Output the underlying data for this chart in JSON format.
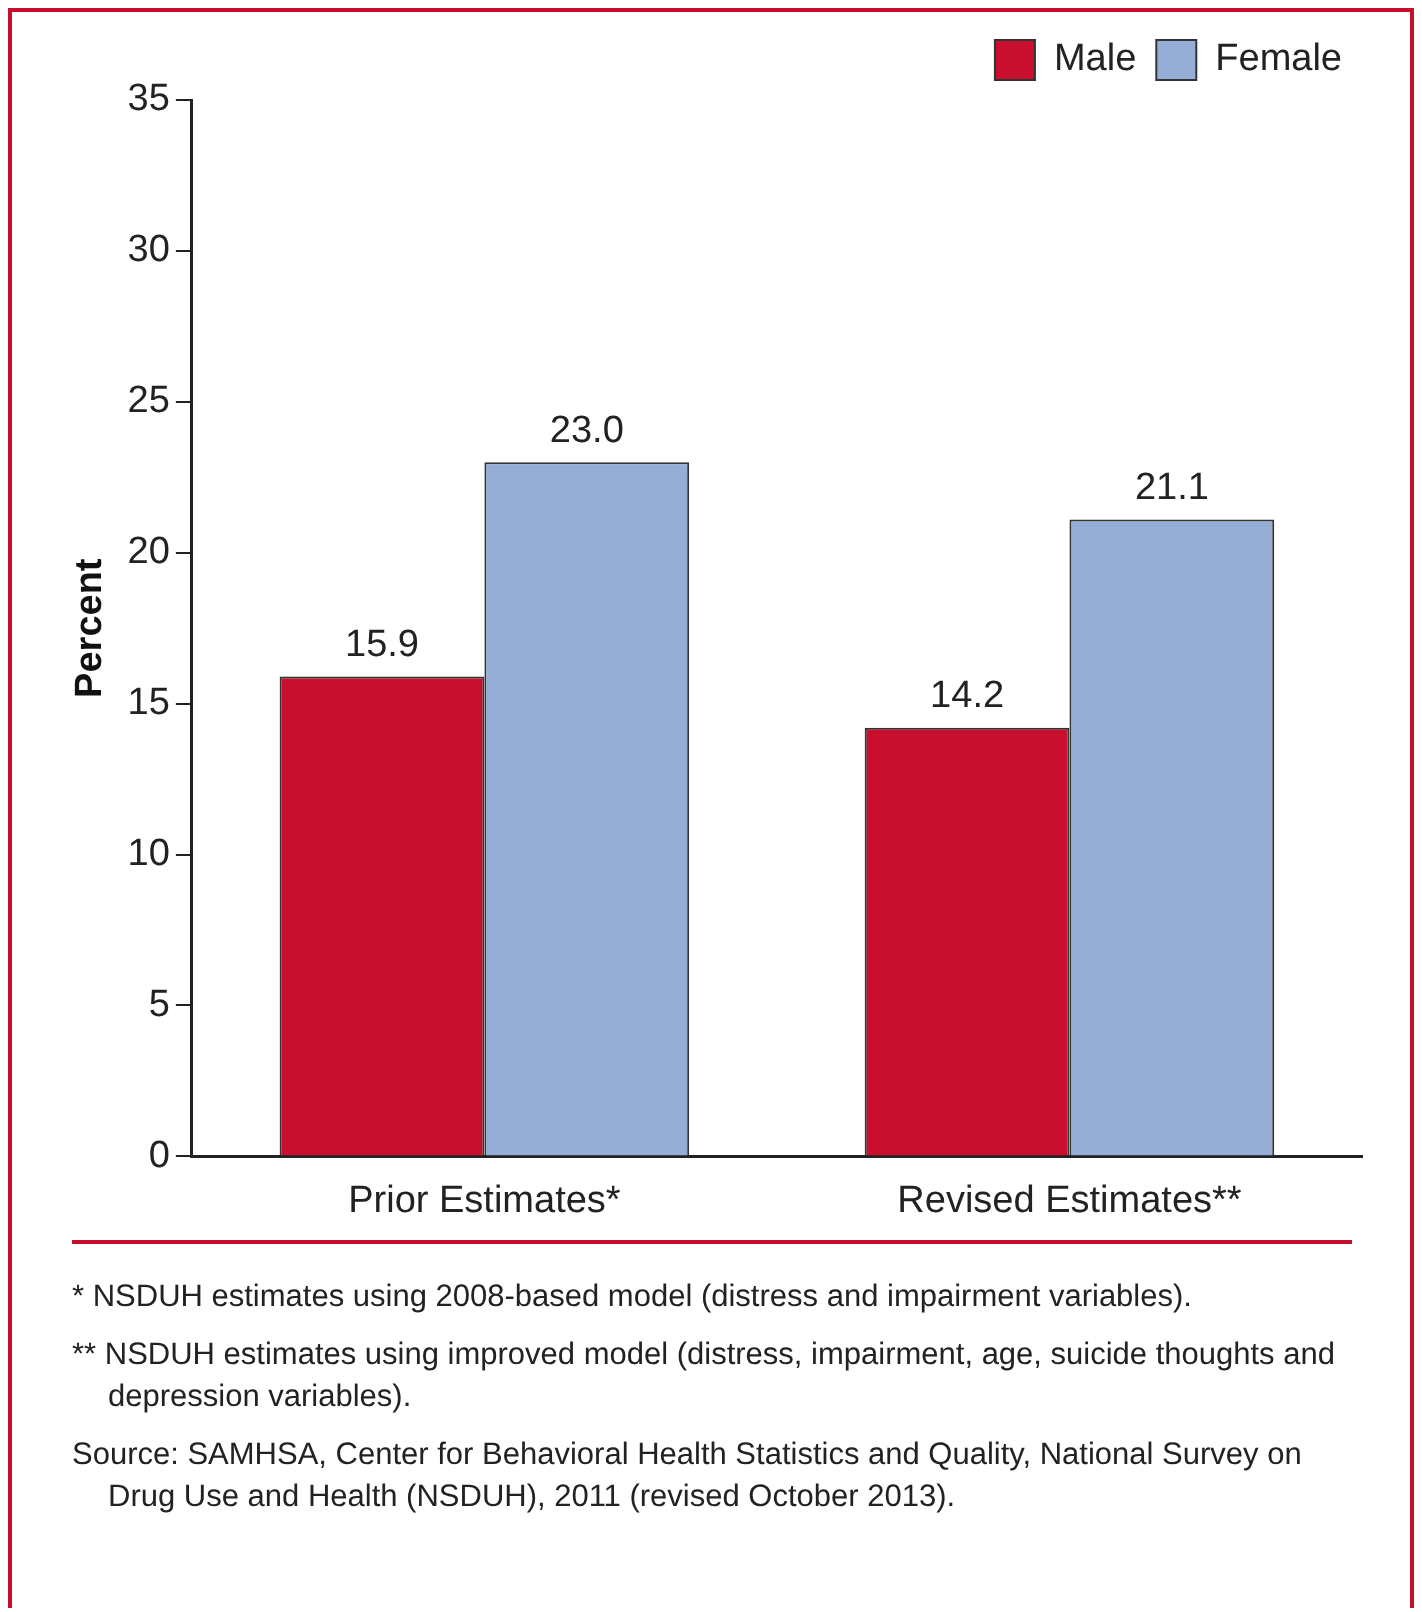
{
  "chart_data": {
    "type": "bar",
    "ylabel": "Percent",
    "categories": [
      "Prior Estimates*",
      "Revised Estimates**"
    ],
    "series": [
      {
        "name": "Male",
        "color": "#c8102e",
        "values": [
          15.9,
          14.2
        ],
        "value_labels": [
          "15.9",
          "14.2"
        ]
      },
      {
        "name": "Female",
        "color": "#94aed6",
        "values": [
          23.0,
          21.1
        ],
        "value_labels": [
          "23.0",
          "21.1"
        ]
      }
    ],
    "ylim": [
      0,
      35
    ],
    "yticks": [
      0,
      5,
      10,
      15,
      20,
      25,
      30,
      35
    ],
    "grid": false,
    "legend": "top right",
    "annotations": [
      "* NSDUH estimates using 2008-based model (distress and impairment variables).",
      "** NSDUH estimates using improved model (distress, impairment, age, suicide thoughts and depression variables).",
      "Source: SAMHSA, Center for Behavioral Health Statistics and Quality, National Survey on Drug Use and Health (NSDUH), 2011 (revised October 2013)."
    ]
  }
}
